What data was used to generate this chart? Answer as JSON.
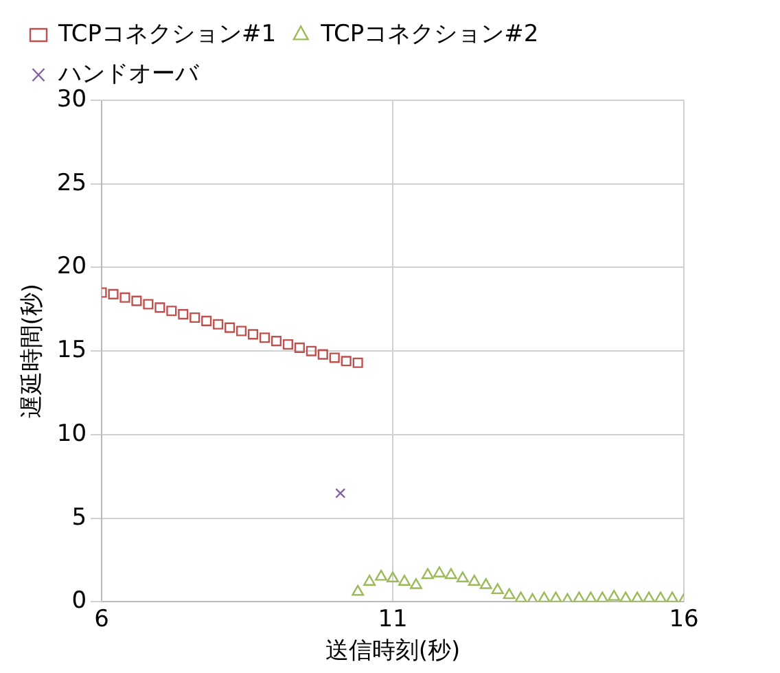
{
  "chart_data": {
    "type": "scatter",
    "xlabel": "送信時刻(秒)",
    "ylabel": "遅延時間(秒)",
    "xlim": [
      6,
      16
    ],
    "xticks": [
      6,
      11,
      16
    ],
    "ylim": [
      0,
      30
    ],
    "yticks": [
      0,
      5,
      10,
      15,
      20,
      25,
      30
    ],
    "grid": true,
    "legend": "top left",
    "series": [
      {
        "name": "TCPコネクション#1",
        "color": "#c0504d",
        "marker": "square",
        "x": [
          6.0,
          6.2,
          6.4,
          6.6,
          6.8,
          7.0,
          7.2,
          7.4,
          7.6,
          7.8,
          8.0,
          8.2,
          8.4,
          8.6,
          8.8,
          9.0,
          9.2,
          9.4,
          9.6,
          9.8,
          10.0,
          10.2,
          10.4
        ],
        "values": [
          18.5,
          18.4,
          18.2,
          18.0,
          17.8,
          17.6,
          17.4,
          17.2,
          17.0,
          16.8,
          16.6,
          16.4,
          16.2,
          16.0,
          15.8,
          15.6,
          15.4,
          15.2,
          15.0,
          14.8,
          14.6,
          14.4,
          14.3
        ]
      },
      {
        "name": "TCPコネクション#2",
        "color": "#9bbb59",
        "marker": "triangle",
        "x": [
          10.4,
          10.6,
          10.8,
          11.0,
          11.2,
          11.4,
          11.6,
          11.8,
          12.0,
          12.2,
          12.4,
          12.6,
          12.8,
          13.0,
          13.2,
          13.4,
          13.6,
          13.8,
          14.0,
          14.2,
          14.4,
          14.6,
          14.8,
          15.0,
          15.2,
          15.4,
          15.6,
          15.8,
          16.0
        ],
        "values": [
          0.6,
          1.2,
          1.5,
          1.4,
          1.2,
          1.0,
          1.6,
          1.7,
          1.6,
          1.4,
          1.2,
          1.0,
          0.7,
          0.4,
          0.2,
          0.1,
          0.2,
          0.2,
          0.1,
          0.2,
          0.2,
          0.2,
          0.3,
          0.2,
          0.2,
          0.2,
          0.2,
          0.2,
          0.1
        ]
      },
      {
        "name": "ハンドオーバ",
        "color": "#8064a2",
        "marker": "cross",
        "x": [
          10.1
        ],
        "values": [
          6.5
        ]
      }
    ]
  }
}
